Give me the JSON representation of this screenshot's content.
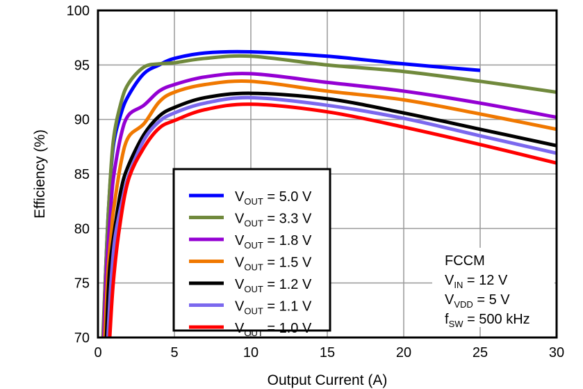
{
  "chart_data": {
    "type": "line",
    "xlabel": "Output Current (A)",
    "ylabel": "Efficiency (%)",
    "xlim": [
      0,
      30
    ],
    "ylim": [
      70,
      100
    ],
    "xticks": [
      "0",
      "5",
      "10",
      "15",
      "20",
      "25",
      "30"
    ],
    "yticks": [
      "70",
      "75",
      "80",
      "85",
      "90",
      "95",
      "100"
    ],
    "grid": true,
    "legend_placement": "bottom-left-center",
    "series": [
      {
        "name_main": "V",
        "name_sub": "OUT",
        "name_rest": " = 5.0 V",
        "color": "#0000FF",
        "x": [
          0.35,
          0.5,
          0.7,
          1,
          1.5,
          2,
          3,
          4,
          5,
          7,
          10,
          15,
          20,
          25
        ],
        "y": [
          70,
          76,
          82,
          87.5,
          90.5,
          92.2,
          94.2,
          95.0,
          95.6,
          96.1,
          96.2,
          95.8,
          95.1,
          94.5
        ]
      },
      {
        "name_main": "V",
        "name_sub": "OUT",
        "name_rest": " = 3.3 V",
        "color": "#70893C",
        "x": [
          0.32,
          0.5,
          0.7,
          1,
          1.5,
          2,
          3,
          4,
          5,
          7,
          10,
          15,
          20,
          25,
          30
        ],
        "y": [
          70,
          76,
          82,
          88,
          91.5,
          93.3,
          94.8,
          95.1,
          95.2,
          95.6,
          95.8,
          95.0,
          94.4,
          93.5,
          92.5
        ]
      },
      {
        "name_main": "V",
        "name_sub": "OUT",
        "name_rest": " = 1.8 V",
        "color": "#9400D3",
        "x": [
          0.38,
          0.55,
          0.8,
          1,
          1.5,
          2,
          3,
          4,
          5,
          7,
          10,
          15,
          20,
          25,
          30
        ],
        "y": [
          70,
          76,
          81,
          84.5,
          88.5,
          90.4,
          91.3,
          92.6,
          93.2,
          93.9,
          94.2,
          93.4,
          92.6,
          91.5,
          90.2
        ]
      },
      {
        "name_main": "V",
        "name_sub": "OUT",
        "name_rest": " = 1.5 V",
        "color": "#F07800",
        "x": [
          0.45,
          0.65,
          0.9,
          1,
          1.5,
          2,
          3,
          4,
          5,
          7,
          10,
          15,
          20,
          25,
          30
        ],
        "y": [
          70,
          76,
          80,
          81.5,
          86,
          88.4,
          89.6,
          91.6,
          92.5,
          93.2,
          93.5,
          92.6,
          91.8,
          90.5,
          89.1
        ]
      },
      {
        "name_main": "V",
        "name_sub": "OUT",
        "name_rest": " = 1.2 V",
        "color": "#000000",
        "x": [
          0.55,
          0.75,
          1,
          1.5,
          2,
          3,
          4,
          5,
          7,
          10,
          15,
          20,
          25,
          30
        ],
        "y": [
          70,
          76,
          79,
          83.5,
          85.8,
          88.6,
          90.3,
          91.1,
          92.0,
          92.4,
          91.9,
          90.6,
          89.1,
          87.6
        ]
      },
      {
        "name_main": "V",
        "name_sub": "OUT",
        "name_rest": " = 1.1 V",
        "color": "#7B68EE",
        "x": [
          0.65,
          0.85,
          1.1,
          1.5,
          2,
          3,
          4,
          5,
          7,
          10,
          15,
          20,
          25,
          30
        ],
        "y": [
          70,
          75,
          79,
          82,
          84.8,
          88.1,
          89.8,
          90.6,
          91.5,
          92.0,
          91.3,
          90.1,
          88.5,
          86.9
        ]
      },
      {
        "name_main": "V",
        "name_sub": "OUT",
        "name_rest": " = 1.0 V",
        "color": "#FF0000",
        "x": [
          0.77,
          1,
          1.4,
          2,
          3,
          4,
          5,
          7,
          10,
          15,
          20,
          25,
          30
        ],
        "y": [
          70,
          75,
          80,
          84.5,
          87.4,
          89.2,
          89.9,
          90.9,
          91.4,
          90.7,
          89.3,
          87.7,
          86.0
        ]
      }
    ],
    "annotations": [
      {
        "main": "FCCM",
        "sub": "",
        "rest": ""
      },
      {
        "main": "V",
        "sub": "IN",
        "rest": " = 12 V"
      },
      {
        "main": "V",
        "sub": "VDD",
        "rest": " = 5 V"
      },
      {
        "main": "f",
        "sub": "SW",
        "rest": " = 500 kHz"
      }
    ]
  }
}
